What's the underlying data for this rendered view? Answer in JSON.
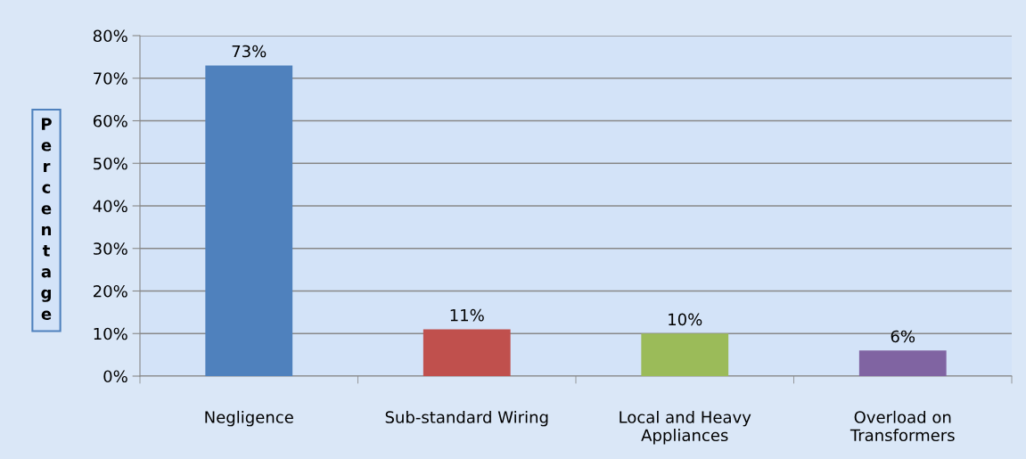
{
  "chart_data": {
    "type": "bar",
    "ylabel": "Percentage",
    "categories": [
      "Negligence",
      "Sub-standard Wiring",
      "Local and Heavy\nAppliances",
      "Overload on\nTransformers"
    ],
    "values": [
      73,
      11,
      10,
      6
    ],
    "value_labels": [
      "73%",
      "11%",
      "10%",
      "6%"
    ],
    "colors": [
      "#4f81bd",
      "#c0504d",
      "#9bbb59",
      "#8064a2"
    ],
    "ylim": [
      0,
      80
    ],
    "yticks": [
      {
        "value": 0,
        "label": "0%"
      },
      {
        "value": 10,
        "label": "10%"
      },
      {
        "value": 20,
        "label": "20%"
      },
      {
        "value": 30,
        "label": "30%"
      },
      {
        "value": 40,
        "label": "40%"
      },
      {
        "value": 50,
        "label": "50%"
      },
      {
        "value": 60,
        "label": "60%"
      },
      {
        "value": 70,
        "label": "70%"
      },
      {
        "value": 80,
        "label": "80%"
      }
    ],
    "grid": "y"
  }
}
